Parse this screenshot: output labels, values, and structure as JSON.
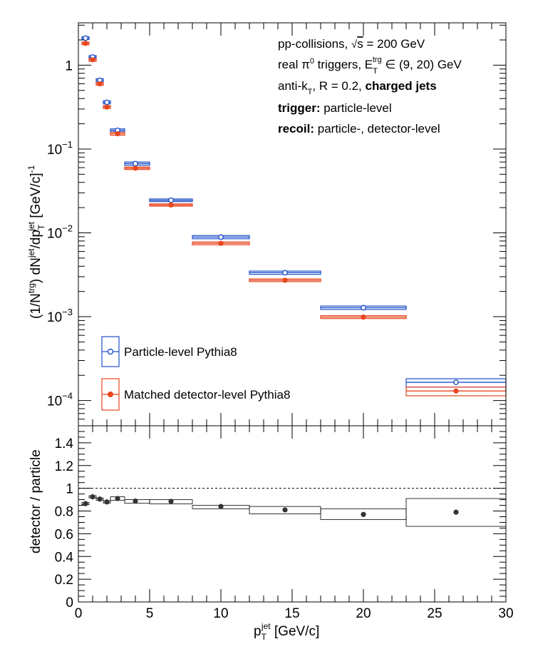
{
  "chart_data": [
    {
      "type": "scatter",
      "panel": "top",
      "yscale": "log",
      "xlim": [
        0,
        30
      ],
      "ylim": [
        5e-05,
        3.2
      ],
      "ylabel": {
        "pre": "(1/N",
        "sup1": "trg",
        "mid": ") dN",
        "sup2": "jet",
        "mid2": "/dp",
        "sub": "T",
        "sup3": "jet",
        "post": " [GeV/c]",
        "sup4": "-1"
      },
      "y_ticks": [
        {
          "value": 1,
          "base": "1",
          "exp": ""
        },
        {
          "value": 0.1,
          "base": "10",
          "exp": "−1"
        },
        {
          "value": 0.01,
          "base": "10",
          "exp": "−2"
        },
        {
          "value": 0.001,
          "base": "10",
          "exp": "−3"
        },
        {
          "value": 0.0001,
          "base": "10",
          "exp": "−4"
        }
      ],
      "annotations": {
        "line1_pre": "pp-collisions, ",
        "line1_sqrt": "s",
        "line1_post": " = 200 GeV",
        "line2_pre": "real π",
        "line2_sup0": "0",
        "line2_mid": " triggers, E",
        "line2_sub": "T",
        "line2_sup": "trg",
        "line2_post": " ∈ (9, 20) GeV",
        "line3_pre": "anti-k",
        "line3_sub": "T",
        "line3_mid": ", R = 0.2, ",
        "line3_bold": "charged jets",
        "line4_bold": "trigger:",
        "line4_rest": " particle-level",
        "line5_bold": "recoil:",
        "line5_rest": " particle-, detector-level"
      },
      "series": [
        {
          "name": "Particle-level Pythia8",
          "color": "#1e50c8",
          "marker": "open-circle",
          "points": [
            {
              "x": 0.5,
              "y": 2.1,
              "xlo": 0.25,
              "xhi": 0.75,
              "ylo": 2.02,
              "yhi": 2.18
            },
            {
              "x": 1.0,
              "y": 1.25,
              "xlo": 0.75,
              "xhi": 1.25,
              "ylo": 1.2,
              "yhi": 1.3
            },
            {
              "x": 1.5,
              "y": 0.66,
              "xlo": 1.25,
              "xhi": 1.75,
              "ylo": 0.63,
              "yhi": 0.69
            },
            {
              "x": 2.0,
              "y": 0.36,
              "xlo": 1.75,
              "xhi": 2.25,
              "ylo": 0.345,
              "yhi": 0.375
            },
            {
              "x": 2.75,
              "y": 0.167,
              "xlo": 2.25,
              "xhi": 3.25,
              "ylo": 0.16,
              "yhi": 0.174
            },
            {
              "x": 4.0,
              "y": 0.067,
              "xlo": 3.25,
              "xhi": 5.0,
              "ylo": 0.064,
              "yhi": 0.07
            },
            {
              "x": 6.5,
              "y": 0.0245,
              "xlo": 5.0,
              "xhi": 8.0,
              "ylo": 0.0236,
              "yhi": 0.0254
            },
            {
              "x": 10.0,
              "y": 0.0089,
              "xlo": 8.0,
              "xhi": 12.0,
              "ylo": 0.0085,
              "yhi": 0.0093
            },
            {
              "x": 14.5,
              "y": 0.00335,
              "xlo": 12.0,
              "xhi": 17.0,
              "ylo": 0.0032,
              "yhi": 0.0035
            },
            {
              "x": 20.0,
              "y": 0.00128,
              "xlo": 17.0,
              "xhi": 23.0,
              "ylo": 0.00122,
              "yhi": 0.00134
            },
            {
              "x": 26.5,
              "y": 0.000165,
              "xlo": 23.0,
              "xhi": 30.0,
              "ylo": 0.000145,
              "yhi": 0.000182
            }
          ]
        },
        {
          "name": "Matched detector-level Pythia8",
          "color": "#e8461e",
          "marker": "filled-circle",
          "points": [
            {
              "x": 0.5,
              "y": 1.82,
              "xlo": 0.25,
              "xhi": 0.75,
              "ylo": 1.75,
              "yhi": 1.89
            },
            {
              "x": 1.0,
              "y": 1.16,
              "xlo": 0.75,
              "xhi": 1.25,
              "ylo": 1.11,
              "yhi": 1.21
            },
            {
              "x": 1.5,
              "y": 0.6,
              "xlo": 1.25,
              "xhi": 1.75,
              "ylo": 0.575,
              "yhi": 0.625
            },
            {
              "x": 2.0,
              "y": 0.317,
              "xlo": 1.75,
              "xhi": 2.25,
              "ylo": 0.305,
              "yhi": 0.329
            },
            {
              "x": 2.75,
              "y": 0.152,
              "xlo": 2.25,
              "xhi": 3.25,
              "ylo": 0.146,
              "yhi": 0.158
            },
            {
              "x": 4.0,
              "y": 0.059,
              "xlo": 3.25,
              "xhi": 5.0,
              "ylo": 0.057,
              "yhi": 0.061
            },
            {
              "x": 6.5,
              "y": 0.0215,
              "xlo": 5.0,
              "xhi": 8.0,
              "ylo": 0.0208,
              "yhi": 0.0222
            },
            {
              "x": 10.0,
              "y": 0.0075,
              "xlo": 8.0,
              "xhi": 12.0,
              "ylo": 0.0072,
              "yhi": 0.0078
            },
            {
              "x": 14.5,
              "y": 0.00272,
              "xlo": 12.0,
              "xhi": 17.0,
              "ylo": 0.00262,
              "yhi": 0.00282
            },
            {
              "x": 20.0,
              "y": 0.00099,
              "xlo": 17.0,
              "xhi": 23.0,
              "ylo": 0.00095,
              "yhi": 0.00103
            },
            {
              "x": 26.5,
              "y": 0.00013,
              "xlo": 23.0,
              "xhi": 30.0,
              "ylo": 0.000114,
              "yhi": 0.000145
            }
          ]
        }
      ]
    },
    {
      "type": "scatter",
      "panel": "bottom",
      "xlim": [
        0,
        30
      ],
      "ylim": [
        0,
        1.55
      ],
      "xlabel": {
        "pre": "p",
        "sub": "T",
        "sup": "jet",
        "post": " [GeV/c]"
      },
      "ylabel": "detector / particle",
      "reference_line": 1,
      "x_ticks": [
        "0",
        "5",
        "10",
        "15",
        "20",
        "25",
        "30"
      ],
      "y_ticks": [
        "0",
        "0.2",
        "0.4",
        "0.6",
        "0.8",
        "1",
        "1.2",
        "1.4"
      ],
      "series": [
        {
          "name": "ratio",
          "color": "#333333",
          "points": [
            {
              "x": 0.5,
              "y": 0.865,
              "xlo": 0.25,
              "xhi": 0.75,
              "ylo": 0.855,
              "yhi": 0.875
            },
            {
              "x": 1.0,
              "y": 0.925,
              "xlo": 0.75,
              "xhi": 1.25,
              "ylo": 0.915,
              "yhi": 0.935
            },
            {
              "x": 1.5,
              "y": 0.905,
              "xlo": 1.25,
              "xhi": 1.75,
              "ylo": 0.895,
              "yhi": 0.915
            },
            {
              "x": 2.0,
              "y": 0.88,
              "xlo": 1.75,
              "xhi": 2.25,
              "ylo": 0.87,
              "yhi": 0.89
            },
            {
              "x": 2.75,
              "y": 0.91,
              "xlo": 2.25,
              "xhi": 3.25,
              "ylo": 0.895,
              "yhi": 0.925
            },
            {
              "x": 4.0,
              "y": 0.888,
              "xlo": 3.25,
              "xhi": 5.0,
              "ylo": 0.868,
              "yhi": 0.9
            },
            {
              "x": 6.5,
              "y": 0.885,
              "xlo": 5.0,
              "xhi": 8.0,
              "ylo": 0.863,
              "yhi": 0.9
            },
            {
              "x": 10.0,
              "y": 0.84,
              "xlo": 8.0,
              "xhi": 12.0,
              "ylo": 0.82,
              "yhi": 0.85
            },
            {
              "x": 14.5,
              "y": 0.81,
              "xlo": 12.0,
              "xhi": 17.0,
              "ylo": 0.775,
              "yhi": 0.84
            },
            {
              "x": 20.0,
              "y": 0.77,
              "xlo": 17.0,
              "xhi": 23.0,
              "ylo": 0.725,
              "yhi": 0.82
            },
            {
              "x": 26.5,
              "y": 0.79,
              "xlo": 23.0,
              "xhi": 30.0,
              "ylo": 0.665,
              "yhi": 0.91
            }
          ]
        }
      ]
    }
  ]
}
